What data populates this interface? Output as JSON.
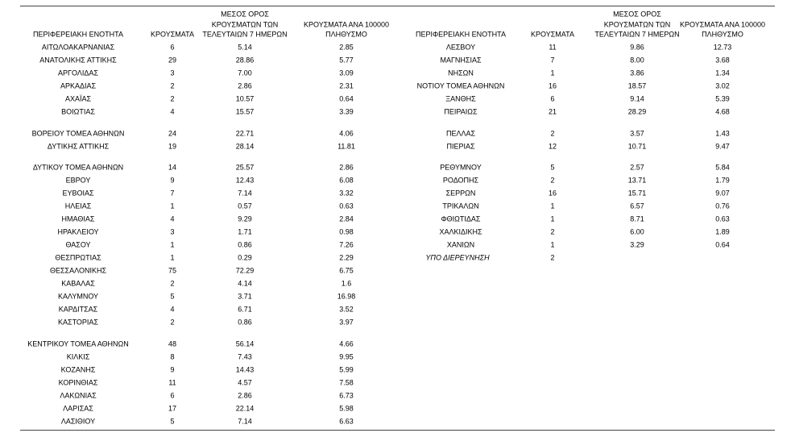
{
  "tables": [
    {
      "header": [
        [
          "ΠΕΡΙΦΕΡΕΙΑΚΗ ΕΝΟΤΗΤΑ"
        ],
        [
          "ΚΡΟΥΣΜΑΤΑ"
        ],
        [
          "ΜΕΣΟΣ ΟΡΟΣ",
          "ΚΡΟΥΣΜΑΤΩΝ ΤΩΝ",
          "ΤΕΛΕΥΤΑΙΩΝ 7 ΗΜΕΡΩΝ"
        ],
        [
          "ΚΡΟΥΣΜΑΤΑ ΑΝΑ 100000",
          "ΠΛΗΘΥΣΜΟ"
        ]
      ],
      "groups": [
        [
          [
            "ΑΙΤΩΛΟΑΚΑΡΝΑΝΙΑΣ",
            "6",
            "5.14",
            "2.85"
          ],
          [
            "ΑΝΑΤΟΛΙΚΗΣ ΑΤΤΙΚΗΣ",
            "29",
            "28.86",
            "5.77"
          ],
          [
            "ΑΡΓΟΛΙΔΑΣ",
            "3",
            "7.00",
            "3.09"
          ],
          [
            "ΑΡΚΑΔΙΑΣ",
            "2",
            "2.86",
            "2.31"
          ],
          [
            "ΑΧΑΪΑΣ",
            "2",
            "10.57",
            "0.64"
          ],
          [
            "ΒΟΙΩΤΙΑΣ",
            "4",
            "15.57",
            "3.39"
          ]
        ],
        [
          [
            "ΒΟΡΕΙΟΥ ΤΟΜΕΑ ΑΘΗΝΩΝ",
            "24",
            "22.71",
            "4.06"
          ],
          [
            "ΔΥΤΙΚΗΣ ΑΤΤΙΚΗΣ",
            "19",
            "28.14",
            "11.81"
          ]
        ],
        [
          [
            "ΔΥΤΙΚΟΥ ΤΟΜΕΑ ΑΘΗΝΩΝ",
            "14",
            "25.57",
            "2.86"
          ],
          [
            "ΕΒΡΟΥ",
            "9",
            "12.43",
            "6.08"
          ],
          [
            "ΕΥΒΟΙΑΣ",
            "7",
            "7.14",
            "3.32"
          ],
          [
            "ΗΛΕΙΑΣ",
            "1",
            "0.57",
            "0.63"
          ],
          [
            "ΗΜΑΘΙΑΣ",
            "4",
            "9.29",
            "2.84"
          ],
          [
            "ΗΡΑΚΛΕΙΟΥ",
            "3",
            "1.71",
            "0.98"
          ],
          [
            "ΘΑΣΟΥ",
            "1",
            "0.86",
            "7.26"
          ],
          [
            "ΘΕΣΠΡΩΤΙΑΣ",
            "1",
            "0.29",
            "2.29"
          ],
          [
            "ΘΕΣΣΑΛΟΝΙΚΗΣ",
            "75",
            "72.29",
            "6.75"
          ],
          [
            "ΚΑΒΑΛΑΣ",
            "2",
            "4.14",
            "1.6"
          ],
          [
            "ΚΑΛΥΜΝΟΥ",
            "5",
            "3.71",
            "16.98"
          ],
          [
            "ΚΑΡΔΙΤΣΑΣ",
            "4",
            "6.71",
            "3.52"
          ],
          [
            "ΚΑΣΤΟΡΙΑΣ",
            "2",
            "0.86",
            "3.97"
          ]
        ],
        [
          [
            "ΚΕΝΤΡΙΚΟΥ ΤΟΜΕΑ ΑΘΗΝΩΝ",
            "48",
            "56.14",
            "4.66"
          ],
          [
            "ΚΙΛΚΙΣ",
            "8",
            "7.43",
            "9.95"
          ],
          [
            "ΚΟΖΑΝΗΣ",
            "9",
            "14.43",
            "5.99"
          ],
          [
            "ΚΟΡΙΝΘΙΑΣ",
            "11",
            "4.57",
            "7.58"
          ],
          [
            "ΛΑΚΩΝΙΑΣ",
            "6",
            "2.86",
            "6.73"
          ],
          [
            "ΛΑΡΙΣΑΣ",
            "17",
            "22.14",
            "5.98"
          ],
          [
            "ΛΑΣΙΘΙΟΥ",
            "5",
            "7.14",
            "6.63"
          ]
        ]
      ]
    },
    {
      "header": [
        [
          "ΠΕΡΙΦΕΡΕΙΑΚΗ ΕΝΟΤΗΤΑ"
        ],
        [
          "ΚΡΟΥΣΜΑΤΑ"
        ],
        [
          "ΜΕΣΟΣ ΟΡΟΣ",
          "ΚΡΟΥΣΜΑΤΩΝ ΤΩΝ",
          "ΤΕΛΕΥΤΑΙΩΝ 7 ΗΜΕΡΩΝ"
        ],
        [
          "ΚΡΟΥΣΜΑΤΑ ΑΝΑ 100000",
          "ΠΛΗΘΥΣΜΟ"
        ]
      ],
      "groups": [
        [
          [
            "ΛΕΣΒΟΥ",
            "11",
            "9.86",
            "12.73"
          ],
          [
            "ΜΑΓΝΗΣΙΑΣ",
            "7",
            "8.00",
            "3.68"
          ],
          [
            "ΝΗΣΩΝ",
            "1",
            "3.86",
            "1.34"
          ],
          [
            "ΝΟΤΙΟΥ ΤΟΜΕΑ ΑΘΗΝΩΝ",
            "16",
            "18.57",
            "3.02"
          ],
          [
            "ΞΑΝΘΗΣ",
            "6",
            "9.14",
            "5.39"
          ],
          [
            "ΠΕΙΡΑΙΩΣ",
            "21",
            "28.29",
            "4.68"
          ]
        ],
        [
          [
            "ΠΕΛΛΑΣ",
            "2",
            "3.57",
            "1.43"
          ],
          [
            "ΠΙΕΡΙΑΣ",
            "12",
            "10.71",
            "9.47"
          ]
        ],
        [
          [
            "ΡΕΘΥΜΝΟΥ",
            "5",
            "2.57",
            "5.84"
          ],
          [
            "ΡΟΔΟΠΗΣ",
            "2",
            "13.71",
            "1.79"
          ],
          [
            "ΣΕΡΡΩΝ",
            "16",
            "15.71",
            "9.07"
          ],
          [
            "ΤΡΙΚΑΛΩΝ",
            "1",
            "6.57",
            "0.76"
          ],
          [
            "ΦΘΙΩΤΙΔΑΣ",
            "1",
            "8.71",
            "0.63"
          ],
          [
            "ΧΑΛΚΙΔΙΚΗΣ",
            "2",
            "6.00",
            "1.89"
          ],
          [
            "ΧΑΝΙΩΝ",
            "1",
            "3.29",
            "0.64"
          ],
          [
            "ΥΠΟ ΔΙΕΡΕΥΝΗΣΗ",
            "2"
          ]
        ]
      ]
    }
  ]
}
